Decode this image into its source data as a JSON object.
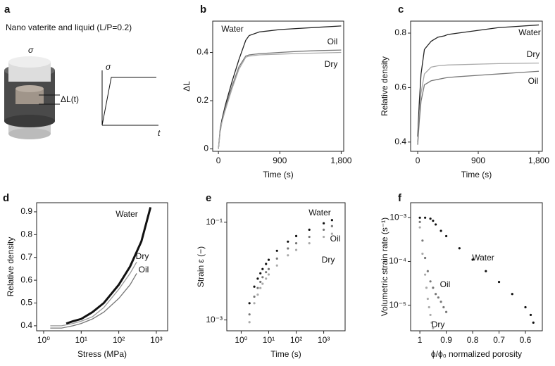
{
  "schematic": {
    "label": "a",
    "title": "Nano vaterite and liquid (L/P=0.2)",
    "stress": "σ",
    "displacement": "ΔL(t)",
    "graph_y": "σ",
    "graph_x": "t"
  },
  "chart_data": [
    {
      "type": "line",
      "label": "b",
      "xlabel": "Time (s)",
      "ylabel": "ΔL",
      "x": [
        0,
        25,
        50,
        100,
        200,
        300,
        400,
        450,
        600,
        900,
        1200,
        1500,
        1800
      ],
      "xlim": [
        -84,
        1837
      ],
      "xticks": [
        0,
        900,
        {
          "value": 1800,
          "label": "1,800"
        }
      ],
      "ylim": [
        -0.01,
        0.53
      ],
      "yticks": [
        0,
        0.2,
        0.4
      ],
      "series": [
        {
          "name": "Water",
          "color": "#222222",
          "values": [
            0,
            0.08,
            0.12,
            0.18,
            0.28,
            0.37,
            0.45,
            0.47,
            0.485,
            0.495,
            0.5,
            0.505,
            0.51
          ]
        },
        {
          "name": "Oil",
          "color": "#777777",
          "values": [
            0,
            0.07,
            0.11,
            0.17,
            0.26,
            0.34,
            0.385,
            0.39,
            0.395,
            0.4,
            0.405,
            0.408,
            0.41
          ]
        },
        {
          "name": "Dry",
          "color": "#aaaaaa",
          "values": [
            0,
            0.07,
            0.11,
            0.16,
            0.25,
            0.33,
            0.38,
            0.385,
            0.39,
            0.393,
            0.396,
            0.398,
            0.4
          ]
        }
      ]
    },
    {
      "type": "line",
      "label": "c",
      "xlabel": "Time (s)",
      "ylabel": "Relative density",
      "x": [
        0,
        25,
        50,
        100,
        200,
        300,
        400,
        450,
        600,
        900,
        1200,
        1500,
        1800
      ],
      "xlim": [
        -105,
        1852
      ],
      "xticks": [
        0,
        900,
        {
          "value": 1800,
          "label": "1,800"
        }
      ],
      "ylim": [
        0.366,
        0.844
      ],
      "yticks": [
        0.4,
        0.6,
        0.8
      ],
      "series": [
        {
          "name": "Water",
          "color": "#222222",
          "values": [
            0.42,
            0.55,
            0.65,
            0.74,
            0.77,
            0.785,
            0.79,
            0.795,
            0.8,
            0.81,
            0.82,
            0.825,
            0.83
          ]
        },
        {
          "name": "Dry",
          "color": "#aaaaaa",
          "values": [
            0.4,
            0.5,
            0.58,
            0.65,
            0.675,
            0.68,
            0.682,
            0.683,
            0.684,
            0.686,
            0.688,
            0.689,
            0.69
          ]
        },
        {
          "name": "Oil",
          "color": "#777777",
          "values": [
            0.39,
            0.48,
            0.55,
            0.61,
            0.625,
            0.63,
            0.635,
            0.637,
            0.64,
            0.645,
            0.65,
            0.655,
            0.66
          ]
        }
      ]
    },
    {
      "type": "line",
      "label": "d",
      "xlabel": "Stress (MPa)",
      "ylabel": "Relative density",
      "xscale": "log",
      "xlim": [
        0.65,
        2000
      ],
      "xticks": [
        {
          "value": 1,
          "label": "10⁰"
        },
        {
          "value": 10,
          "label": "10¹"
        },
        {
          "value": 100,
          "label": "10²"
        },
        {
          "value": 1000,
          "label": "10³"
        }
      ],
      "ylim": [
        0.378,
        0.94
      ],
      "yticks": [
        0.4,
        0.5,
        0.6,
        0.7,
        0.8,
        0.9
      ],
      "series": [
        {
          "name": "Water",
          "color": "#111111",
          "x": [
            4,
            6,
            10,
            20,
            40,
            100,
            200,
            400,
            700
          ],
          "values": [
            0.41,
            0.42,
            0.43,
            0.46,
            0.5,
            0.58,
            0.66,
            0.77,
            0.92
          ]
        },
        {
          "name": "Dry",
          "color": "#999999",
          "x": [
            1.5,
            3,
            6,
            10,
            20,
            40,
            100,
            200,
            300
          ],
          "values": [
            0.4,
            0.4,
            0.41,
            0.42,
            0.44,
            0.48,
            0.56,
            0.63,
            0.68
          ]
        },
        {
          "name": "Oil",
          "color": "#777777",
          "x": [
            1.5,
            3,
            6,
            10,
            20,
            40,
            100,
            200,
            300
          ],
          "values": [
            0.39,
            0.39,
            0.4,
            0.41,
            0.43,
            0.46,
            0.52,
            0.58,
            0.63
          ]
        }
      ]
    },
    {
      "type": "scatter",
      "label": "e",
      "xlabel": "Time (s)",
      "ylabel": "Strain ε (−)",
      "xscale": "log",
      "yscale": "log",
      "xlim": [
        0.3,
        6000
      ],
      "xticks": [
        {
          "value": 1,
          "label": "10⁰"
        },
        {
          "value": 10,
          "label": "10¹"
        },
        {
          "value": 100,
          "label": "10²"
        },
        {
          "value": 1000,
          "label": "10³"
        }
      ],
      "ylim": [
        0.0006,
        0.25
      ],
      "yticks": [
        {
          "value": 0.001,
          "label": "10⁻³"
        },
        {
          "value": 0.1,
          "label": "10⁻¹"
        }
      ],
      "x": [
        2,
        3,
        4,
        5,
        6,
        8,
        10,
        20,
        50,
        100,
        300,
        1000,
        2000
      ],
      "series": [
        {
          "name": "Water",
          "color": "#111111",
          "values": [
            0.0022,
            0.0048,
            0.007,
            0.009,
            0.011,
            0.014,
            0.017,
            0.026,
            0.04,
            0.052,
            0.07,
            0.095,
            0.11
          ]
        },
        {
          "name": "Oil",
          "color": "#777777",
          "values": [
            0.0013,
            0.003,
            0.0045,
            0.006,
            0.0075,
            0.0095,
            0.011,
            0.018,
            0.029,
            0.037,
            0.05,
            0.07,
            0.083
          ]
        },
        {
          "name": "Dry",
          "color": "#aaaaaa",
          "values": [
            0.0009,
            0.0022,
            0.0033,
            0.0045,
            0.0055,
            0.007,
            0.0085,
            0.013,
            0.021,
            0.027,
            0.037,
            0.05,
            0.058
          ]
        }
      ]
    },
    {
      "type": "scatter",
      "label": "f",
      "xlabel": "ϕ/ϕ₀ normalized porosity",
      "ylabel": "Volumetric strain rate (s⁻¹)",
      "yscale": "log",
      "xlim": [
        1.035,
        0.536
      ],
      "xticks": [
        1,
        0.9,
        0.8,
        0.7,
        0.6
      ],
      "ylim": [
        2.6e-06,
        0.0022
      ],
      "yticks": [
        {
          "value": 1e-05,
          "label": "10⁻⁵"
        },
        {
          "value": 0.0001,
          "label": "10⁻⁴"
        },
        {
          "value": 0.001,
          "label": "10⁻³"
        }
      ],
      "series": [
        {
          "name": "Water",
          "color": "#111111",
          "x": [
            1,
            0.98,
            0.96,
            0.95,
            0.94,
            0.92,
            0.9,
            0.85,
            0.8,
            0.75,
            0.7,
            0.65,
            0.6,
            0.58,
            0.57
          ],
          "values": [
            0.001,
            0.001,
            0.00095,
            0.00085,
            0.0007,
            0.0005,
            0.00038,
            0.0002,
            0.00011,
            6e-05,
            3.4e-05,
            1.8e-05,
            9e-06,
            6e-06,
            4e-06
          ]
        },
        {
          "name": "Oil",
          "color": "#777777",
          "x": [
            1,
            0.99,
            0.98,
            0.97,
            0.96,
            0.95,
            0.94,
            0.93,
            0.92,
            0.91,
            0.9
          ],
          "values": [
            0.0008,
            0.0003,
            0.00012,
            6e-05,
            3.5e-05,
            2.5e-05,
            1.8e-05,
            1.5e-05,
            1.2e-05,
            9e-06,
            7e-06
          ]
        },
        {
          "name": "Dry",
          "color": "#aaaaaa",
          "x": [
            1,
            0.99,
            0.98,
            0.975,
            0.97,
            0.965,
            0.96,
            0.955,
            0.95
          ],
          "values": [
            0.0006,
            0.00015,
            5e-05,
            2.5e-05,
            1.4e-05,
            9e-06,
            6e-06,
            4e-06,
            3e-06
          ]
        }
      ]
    }
  ]
}
